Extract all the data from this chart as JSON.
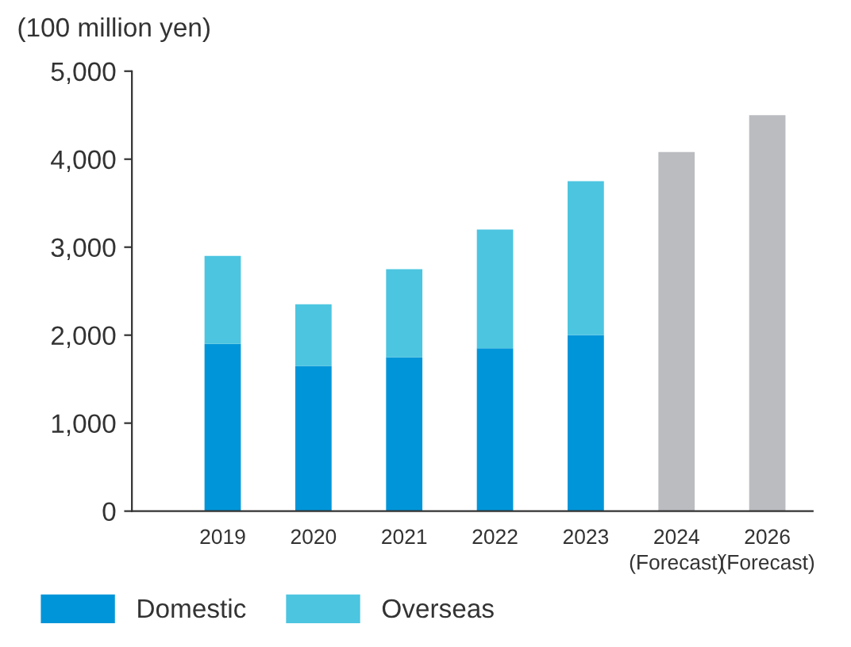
{
  "chart_data": {
    "type": "bar",
    "stacked": true,
    "ylabel": "(100 million yen)",
    "categories": [
      "2019",
      "2020",
      "2021",
      "2022",
      "2023",
      "2024\n(Forecast)",
      "2026\n(Forecast)"
    ],
    "series": [
      {
        "name": "Domestic",
        "color": "#0095d8",
        "values": [
          1900,
          1650,
          1750,
          1850,
          2000,
          null,
          null
        ]
      },
      {
        "name": "Overseas",
        "color": "#4cc5e0",
        "values": [
          1000,
          700,
          1000,
          1350,
          1750,
          null,
          null
        ]
      },
      {
        "color": "#bbbcc0",
        "values": [
          null,
          null,
          null,
          null,
          null,
          4080,
          4500
        ]
      }
    ],
    "ylim": [
      0,
      5000
    ],
    "yticks": [
      {
        "value": 0,
        "label": "0"
      },
      {
        "value": 1000,
        "label": "1,000"
      },
      {
        "value": 2000,
        "label": "2,000"
      },
      {
        "value": 3000,
        "label": "3,000"
      },
      {
        "value": 4000,
        "label": "4,000"
      },
      {
        "value": 5000,
        "label": "5,000"
      }
    ],
    "grid": false,
    "legend": "bottom left"
  }
}
